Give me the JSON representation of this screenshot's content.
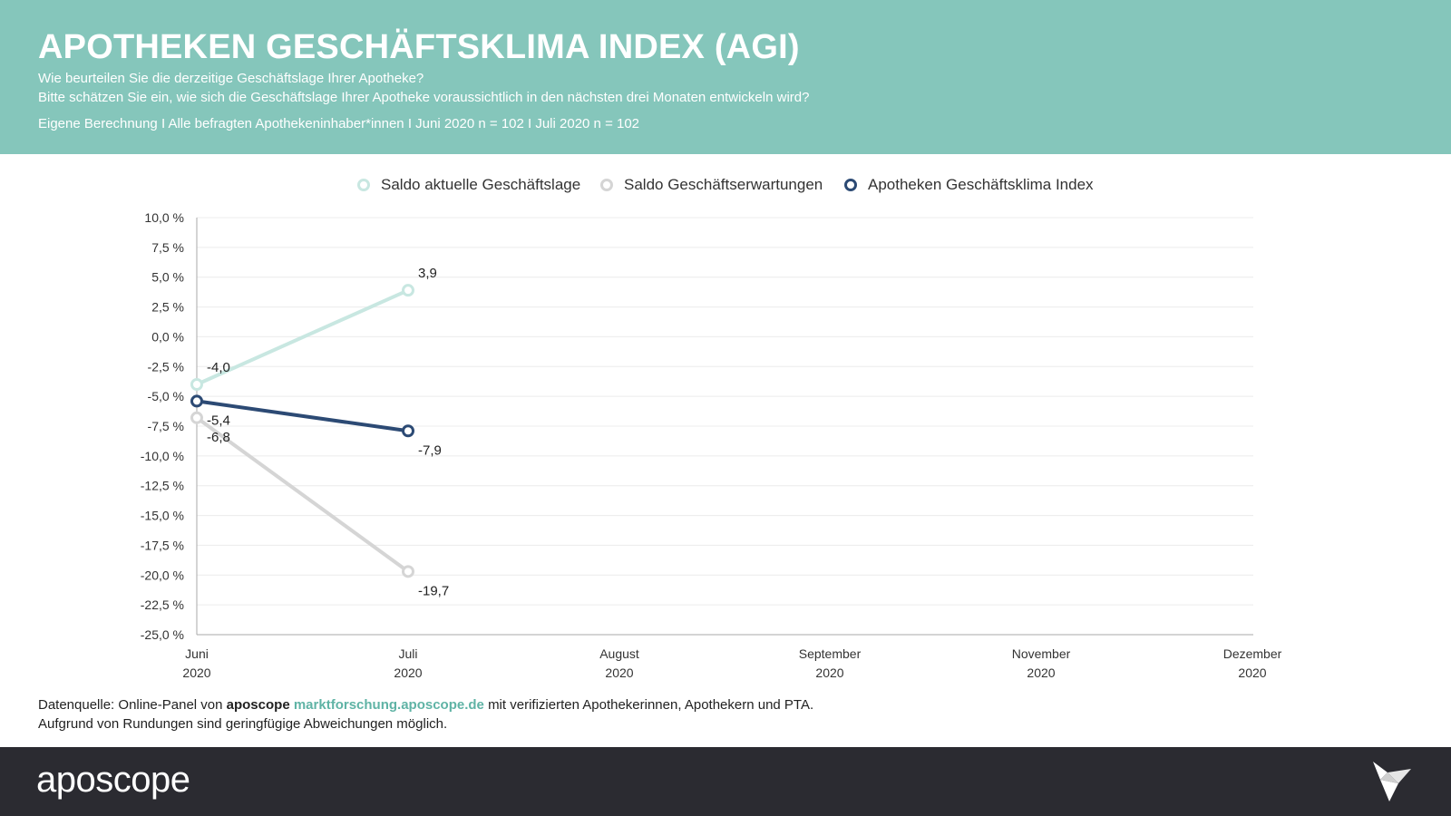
{
  "header": {
    "title": "APOTHEKEN GESCHÄFTSKLIMA INDEX (AGI)",
    "subtitle1": "Wie beurteilen Sie die derzeitige Geschäftslage Ihrer Apotheke?",
    "subtitle2": "Bitte schätzen Sie ein, wie sich die Geschäftslage Ihrer Apotheke voraussichtlich in den nächsten drei Monaten entwickeln wird?",
    "subtitle3": "Eigene Berechnung I Alle befragten Apothekeninhaber*innen I Juni 2020 n = 102 I Juli 2020 n = 102"
  },
  "colors": {
    "header_bg": "#85c6bb",
    "footer_bg": "#2b2b31",
    "series_current": "#c8e7e1",
    "series_expectations": "#d5d5d5",
    "series_index": "#2c4a74",
    "link": "#5fb3a5"
  },
  "chart_data": {
    "type": "line",
    "title": "",
    "xlabel": "",
    "ylabel": "",
    "x_categories": [
      [
        "Juni",
        "2020"
      ],
      [
        "Juli",
        "2020"
      ],
      [
        "August",
        "2020"
      ],
      [
        "September",
        "2020"
      ],
      [
        "November",
        "2020"
      ],
      [
        "Dezember",
        "2020"
      ]
    ],
    "y_ticks": [
      "10,0 %",
      "7,5 %",
      "5,0 %",
      "2,5 %",
      "0,0 %",
      "-2,5 %",
      "-5,0 %",
      "-7,5 %",
      "-10,0 %",
      "-12,5 %",
      "-15,0 %",
      "-17,5 %",
      "-20,0 %",
      "-22,5 %",
      "-25,0 %"
    ],
    "ylim": [
      -25,
      10
    ],
    "y_step": 2.5,
    "grid": true,
    "legend_position": "top-center",
    "series": [
      {
        "name": "Saldo aktuelle Geschäftslage",
        "color": "#c8e7e1",
        "values": [
          -4.0,
          3.9
        ],
        "labels": [
          "-4,0",
          "3,9"
        ]
      },
      {
        "name": "Saldo Geschäftserwartungen",
        "color": "#d5d5d5",
        "values": [
          -6.8,
          -19.7
        ],
        "labels": [
          "-6,8",
          "-19,7"
        ]
      },
      {
        "name": "Apotheken Geschäftsklima Index",
        "color": "#2c4a74",
        "values": [
          -5.4,
          -7.9
        ],
        "labels": [
          "-5,4",
          "-7,9"
        ]
      }
    ]
  },
  "source": {
    "prefix": "Datenquelle: Online-Panel von",
    "brand": "aposcope",
    "link": "marktforschung.aposcope.de",
    "suffix": "mit verifizierten Apothekerinnen, Apothekern und PTA.",
    "note": "Aufgrund von Rundungen sind geringfügige Abweichungen möglich."
  },
  "footer": {
    "logo": "aposcope",
    "bird_icon": "origami-bird-icon"
  }
}
